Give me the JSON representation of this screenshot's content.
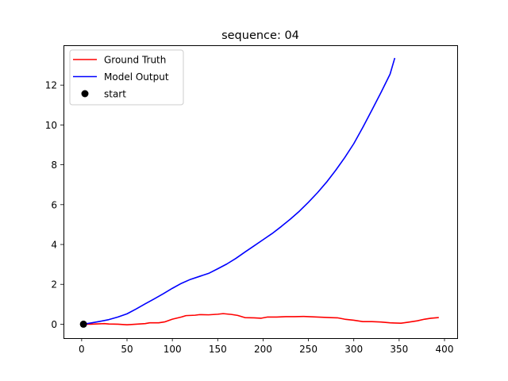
{
  "chart_data": {
    "type": "line",
    "title": "sequence: 04",
    "xlabel": "",
    "ylabel": "",
    "xlim": [
      -20,
      414
    ],
    "ylim": [
      -0.7,
      14.0
    ],
    "xticks": [
      0,
      50,
      100,
      150,
      200,
      250,
      300,
      350,
      400
    ],
    "yticks": [
      0,
      2,
      4,
      6,
      8,
      10,
      12
    ],
    "grid": false,
    "legend_position": "upper-left",
    "series": [
      {
        "name": "Ground Truth",
        "color": "#ff0000",
        "points": [
          [
            2,
            0
          ],
          [
            10,
            0
          ],
          [
            20,
            0.02
          ],
          [
            25,
            0.03
          ],
          [
            30,
            0.01
          ],
          [
            40,
            0
          ],
          [
            50,
            -0.03
          ],
          [
            60,
            0
          ],
          [
            70,
            0.03
          ],
          [
            75,
            0.07
          ],
          [
            85,
            0.07
          ],
          [
            92,
            0.12
          ],
          [
            100,
            0.25
          ],
          [
            110,
            0.36
          ],
          [
            115,
            0.43
          ],
          [
            125,
            0.45
          ],
          [
            130,
            0.48
          ],
          [
            140,
            0.47
          ],
          [
            150,
            0.5
          ],
          [
            156,
            0.53
          ],
          [
            165,
            0.49
          ],
          [
            172,
            0.44
          ],
          [
            180,
            0.33
          ],
          [
            190,
            0.32
          ],
          [
            198,
            0.3
          ],
          [
            205,
            0.36
          ],
          [
            215,
            0.36
          ],
          [
            225,
            0.38
          ],
          [
            235,
            0.38
          ],
          [
            245,
            0.39
          ],
          [
            255,
            0.37
          ],
          [
            265,
            0.35
          ],
          [
            275,
            0.33
          ],
          [
            282,
            0.32
          ],
          [
            290,
            0.25
          ],
          [
            300,
            0.2
          ],
          [
            310,
            0.13
          ],
          [
            320,
            0.13
          ],
          [
            330,
            0.11
          ],
          [
            340,
            0.07
          ],
          [
            345,
            0.06
          ],
          [
            352,
            0.05
          ],
          [
            360,
            0.1
          ],
          [
            370,
            0.17
          ],
          [
            378,
            0.25
          ],
          [
            385,
            0.3
          ],
          [
            393,
            0.33
          ]
        ]
      },
      {
        "name": "Model Output",
        "color": "#0000ff",
        "points": [
          [
            2,
            0
          ],
          [
            10,
            0.06
          ],
          [
            20,
            0.14
          ],
          [
            30,
            0.23
          ],
          [
            40,
            0.36
          ],
          [
            50,
            0.52
          ],
          [
            60,
            0.76
          ],
          [
            70,
            1.02
          ],
          [
            80,
            1.27
          ],
          [
            90,
            1.53
          ],
          [
            100,
            1.8
          ],
          [
            110,
            2.05
          ],
          [
            120,
            2.25
          ],
          [
            130,
            2.4
          ],
          [
            140,
            2.55
          ],
          [
            150,
            2.78
          ],
          [
            160,
            3.02
          ],
          [
            170,
            3.3
          ],
          [
            180,
            3.62
          ],
          [
            190,
            3.93
          ],
          [
            200,
            4.24
          ],
          [
            210,
            4.55
          ],
          [
            220,
            4.9
          ],
          [
            230,
            5.27
          ],
          [
            240,
            5.67
          ],
          [
            250,
            6.12
          ],
          [
            260,
            6.6
          ],
          [
            270,
            7.13
          ],
          [
            280,
            7.72
          ],
          [
            290,
            8.36
          ],
          [
            300,
            9.06
          ],
          [
            310,
            9.88
          ],
          [
            320,
            10.75
          ],
          [
            330,
            11.63
          ],
          [
            340,
            12.55
          ],
          [
            345,
            13.33
          ]
        ]
      },
      {
        "name": "start",
        "color": "#000000",
        "marker": "circle",
        "points": [
          [
            2,
            0
          ]
        ]
      }
    ]
  }
}
